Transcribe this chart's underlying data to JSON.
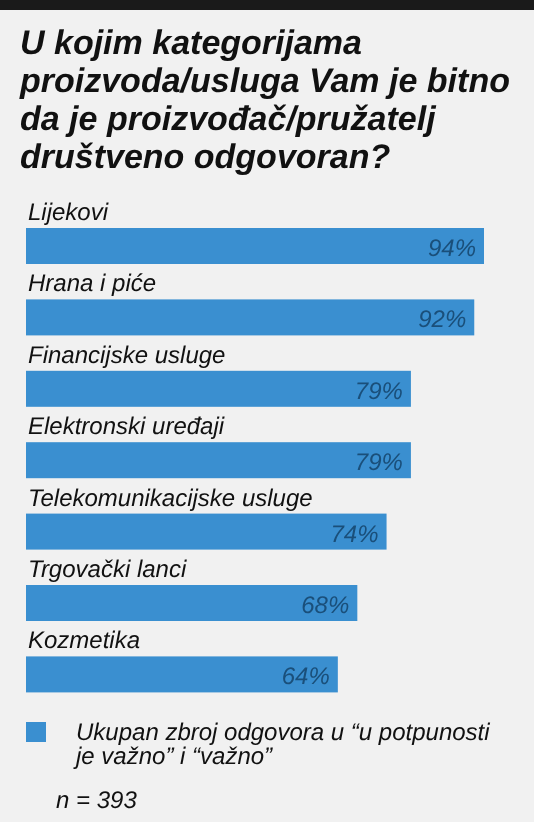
{
  "chart_data": {
    "type": "bar",
    "orientation": "horizontal",
    "title": "U kojim kategorijama proizvoda/usluga Vam je bitno da je proizvođač/pružatelj društveno odgovoran?",
    "categories": [
      "Lijekovi",
      "Hrana i piće",
      "Financijske usluge",
      "Elektronski uređaji",
      "Telekomunikacijske usluge",
      "Trgovački lanci",
      "Kozmetika"
    ],
    "series": [
      {
        "name": "Ukupan zbroj odgovora u “u potpunosti je važno” i “važno”",
        "color": "#3a8fd0",
        "values": [
          94,
          92,
          79,
          79,
          74,
          68,
          64
        ],
        "value_labels": [
          "94%",
          "92%",
          "79%",
          "79%",
          "74%",
          "68%",
          "64%"
        ]
      }
    ],
    "tick_labels": "y",
    "legend": "bottom",
    "annotations": [
      "n = 393"
    ]
  }
}
